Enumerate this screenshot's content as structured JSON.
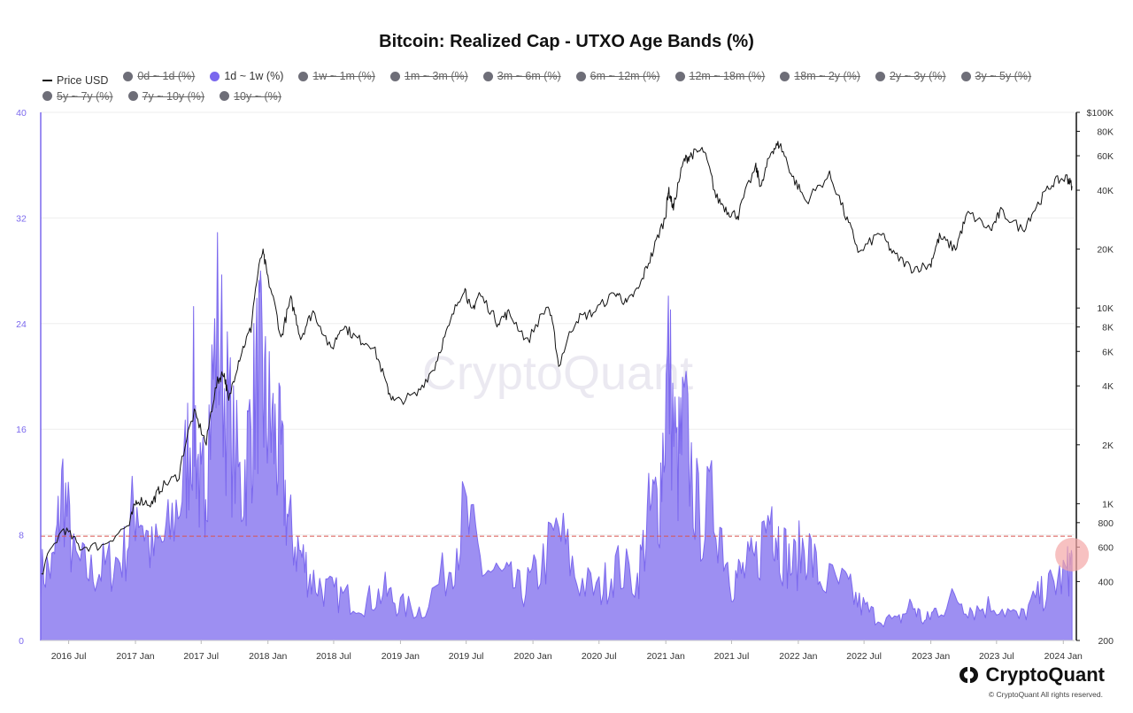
{
  "header": {
    "title": "Bitcoin: Realized Cap - UTXO Age Bands (%)"
  },
  "legend": [
    {
      "label": "Price USD",
      "type": "line",
      "state": "shown"
    },
    {
      "label": "0d ~ 1d (%)",
      "type": "dot",
      "state": "hidden"
    },
    {
      "label": "1d ~ 1w (%)",
      "type": "dot",
      "state": "active"
    },
    {
      "label": "1w ~ 1m (%)",
      "type": "dot",
      "state": "hidden"
    },
    {
      "label": "1m ~ 3m (%)",
      "type": "dot",
      "state": "hidden"
    },
    {
      "label": "3m ~ 6m (%)",
      "type": "dot",
      "state": "hidden"
    },
    {
      "label": "6m ~ 12m (%)",
      "type": "dot",
      "state": "hidden"
    },
    {
      "label": "12m ~ 18m (%)",
      "type": "dot",
      "state": "hidden"
    },
    {
      "label": "18m ~ 2y (%)",
      "type": "dot",
      "state": "hidden"
    },
    {
      "label": "2y ~ 3y (%)",
      "type": "dot",
      "state": "hidden"
    },
    {
      "label": "3y ~ 5y (%)",
      "type": "dot",
      "state": "hidden"
    },
    {
      "label": "5y ~ 7y (%)",
      "type": "dot",
      "state": "hidden"
    },
    {
      "label": "7y ~ 10y (%)",
      "type": "dot",
      "state": "hidden"
    },
    {
      "label": "10y ~ (%)",
      "type": "dot",
      "state": "hidden"
    }
  ],
  "watermark": "CryptoQuant",
  "brand": {
    "name": "CryptoQuant",
    "copyright": "© CryptoQuant All rights reserved."
  },
  "colors": {
    "band": "#7b68ee",
    "band_fill": "#9d8ff2",
    "price": "#111111",
    "threshold": "#d9534f",
    "highlight": "#f4a6a6"
  },
  "chart_data": {
    "type": "area",
    "title": "Bitcoin: Realized Cap - UTXO Age Bands (%)",
    "x_range": [
      "2016-04-15",
      "2024-02-01"
    ],
    "x_ticks": [
      "2016 Jul",
      "2017 Jan",
      "2017 Jul",
      "2018 Jan",
      "2018 Jul",
      "2019 Jan",
      "2019 Jul",
      "2020 Jan",
      "2020 Jul",
      "2021 Jan",
      "2021 Jul",
      "2022 Jan",
      "2022 Jul",
      "2023 Jan",
      "2023 Jul",
      "2024 Jan"
    ],
    "y_left": {
      "range": [
        0,
        40
      ],
      "ticks": [
        "0",
        "8",
        "16",
        "24",
        "32",
        "40"
      ]
    },
    "y_right": {
      "scale": "log",
      "range": [
        200,
        100000
      ],
      "ticks": [
        [
          "200",
          200
        ],
        [
          "400",
          400
        ],
        [
          "600",
          600
        ],
        [
          "800",
          800
        ],
        [
          "1K",
          1000
        ],
        [
          "2K",
          2000
        ],
        [
          "4K",
          4000
        ],
        [
          "6K",
          6000
        ],
        [
          "8K",
          8000
        ],
        [
          "10K",
          10000
        ],
        [
          "20K",
          20000
        ],
        [
          "40K",
          40000
        ],
        [
          "60K",
          60000
        ],
        [
          "80K",
          80000
        ],
        [
          "$100K",
          100000
        ]
      ]
    },
    "threshold_line": 7.9,
    "series": [
      {
        "name": "1d ~ 1w (%)",
        "axis": "left",
        "points": [
          [
            "2016-04-15",
            5.5
          ],
          [
            "2016-05-20",
            6.0
          ],
          [
            "2016-06-15",
            12.8
          ],
          [
            "2016-07-15",
            6.5
          ],
          [
            "2016-09-01",
            5.5
          ],
          [
            "2016-10-15",
            6.0
          ],
          [
            "2016-12-01",
            7.0
          ],
          [
            "2017-01-05",
            11.8
          ],
          [
            "2017-02-15",
            7.0
          ],
          [
            "2017-04-01",
            8.5
          ],
          [
            "2017-05-15",
            13.0
          ],
          [
            "2017-06-10",
            19.5
          ],
          [
            "2017-07-01",
            11.0
          ],
          [
            "2017-07-15",
            15.0
          ],
          [
            "2017-08-15",
            25.5
          ],
          [
            "2017-09-15",
            18.0
          ],
          [
            "2017-10-20",
            12.0
          ],
          [
            "2017-11-15",
            17.5
          ],
          [
            "2017-12-07",
            22.5
          ],
          [
            "2017-12-25",
            19.0
          ],
          [
            "2018-01-15",
            17.0
          ],
          [
            "2018-02-06",
            14.5
          ],
          [
            "2018-03-01",
            9.0
          ],
          [
            "2018-04-01",
            7.0
          ],
          [
            "2018-05-01",
            5.0
          ],
          [
            "2018-06-15",
            4.0
          ],
          [
            "2018-08-01",
            3.5
          ],
          [
            "2018-10-01",
            3.2
          ],
          [
            "2018-11-20",
            4.0
          ],
          [
            "2019-01-01",
            2.8
          ],
          [
            "2019-03-01",
            2.5
          ],
          [
            "2019-05-15",
            6.0
          ],
          [
            "2019-06-26",
            10.2
          ],
          [
            "2019-08-15",
            6.0
          ],
          [
            "2019-10-15",
            5.0
          ],
          [
            "2019-12-01",
            4.0
          ],
          [
            "2020-01-15",
            5.5
          ],
          [
            "2020-03-12",
            9.0
          ],
          [
            "2020-05-01",
            5.0
          ],
          [
            "2020-07-01",
            4.0
          ],
          [
            "2020-08-15",
            6.0
          ],
          [
            "2020-10-15",
            5.0
          ],
          [
            "2020-11-15",
            10.0
          ],
          [
            "2020-12-15",
            12.0
          ],
          [
            "2021-01-08",
            22.5
          ],
          [
            "2021-02-01",
            14.0
          ],
          [
            "2021-02-21",
            17.5
          ],
          [
            "2021-04-01",
            10.0
          ],
          [
            "2021-05-19",
            11.0
          ],
          [
            "2021-07-01",
            5.0
          ],
          [
            "2021-08-01",
            5.5
          ],
          [
            "2021-09-07",
            6.5
          ],
          [
            "2021-10-20",
            11.0
          ],
          [
            "2021-11-10",
            8.0
          ],
          [
            "2021-12-15",
            6.0
          ],
          [
            "2022-01-22",
            8.0
          ],
          [
            "2022-03-01",
            5.0
          ],
          [
            "2022-05-10",
            4.5
          ],
          [
            "2022-06-18",
            3.0
          ],
          [
            "2022-08-01",
            2.0
          ],
          [
            "2022-10-01",
            1.5
          ],
          [
            "2022-11-09",
            3.0
          ],
          [
            "2022-12-15",
            1.5
          ],
          [
            "2023-01-15",
            2.5
          ],
          [
            "2023-03-15",
            3.5
          ],
          [
            "2023-05-01",
            2.5
          ],
          [
            "2023-07-01",
            3.0
          ],
          [
            "2023-09-01",
            1.8
          ],
          [
            "2023-10-23",
            3.5
          ],
          [
            "2023-12-01",
            4.5
          ],
          [
            "2024-01-11",
            5.5
          ],
          [
            "2024-01-25",
            6.5
          ]
        ]
      },
      {
        "name": "Price USD",
        "axis": "right",
        "points": [
          [
            "2016-04-15",
            430
          ],
          [
            "2016-06-17",
            750
          ],
          [
            "2016-08-01",
            600
          ],
          [
            "2016-10-01",
            610
          ],
          [
            "2016-12-15",
            780
          ],
          [
            "2017-01-05",
            1050
          ],
          [
            "2017-02-15",
            1000
          ],
          [
            "2017-03-10",
            1200
          ],
          [
            "2017-05-01",
            1400
          ],
          [
            "2017-06-12",
            2900
          ],
          [
            "2017-07-15",
            2000
          ],
          [
            "2017-08-15",
            4200
          ],
          [
            "2017-09-01",
            4700
          ],
          [
            "2017-09-15",
            3300
          ],
          [
            "2017-10-15",
            5600
          ],
          [
            "2017-11-15",
            7800
          ],
          [
            "2017-12-17",
            19500
          ],
          [
            "2018-01-01",
            14000
          ],
          [
            "2018-02-06",
            6900
          ],
          [
            "2018-03-05",
            11000
          ],
          [
            "2018-04-01",
            7000
          ],
          [
            "2018-05-05",
            9600
          ],
          [
            "2018-06-24",
            6000
          ],
          [
            "2018-07-25",
            8200
          ],
          [
            "2018-09-01",
            7000
          ],
          [
            "2018-10-15",
            6500
          ],
          [
            "2018-11-25",
            3900
          ],
          [
            "2018-12-15",
            3300
          ],
          [
            "2019-02-15",
            3600
          ],
          [
            "2019-04-05",
            5000
          ],
          [
            "2019-05-15",
            8000
          ],
          [
            "2019-06-26",
            12800
          ],
          [
            "2019-07-15",
            9500
          ],
          [
            "2019-08-06",
            11800
          ],
          [
            "2019-09-24",
            8500
          ],
          [
            "2019-10-26",
            9400
          ],
          [
            "2019-12-17",
            6700
          ],
          [
            "2020-02-12",
            10300
          ],
          [
            "2020-03-12",
            5000
          ],
          [
            "2020-04-30",
            8800
          ],
          [
            "2020-06-15",
            9500
          ],
          [
            "2020-08-17",
            12000
          ],
          [
            "2020-09-15",
            10500
          ],
          [
            "2020-10-21",
            12800
          ],
          [
            "2020-11-25",
            19000
          ],
          [
            "2020-12-31",
            29000
          ],
          [
            "2021-01-08",
            40000
          ],
          [
            "2021-01-22",
            32000
          ],
          [
            "2021-02-21",
            57000
          ],
          [
            "2021-03-13",
            61000
          ],
          [
            "2021-04-14",
            64000
          ],
          [
            "2021-05-19",
            37000
          ],
          [
            "2021-06-22",
            31000
          ],
          [
            "2021-07-20",
            29800
          ],
          [
            "2021-09-06",
            52000
          ],
          [
            "2021-09-21",
            41000
          ],
          [
            "2021-10-20",
            64000
          ],
          [
            "2021-11-10",
            69000
          ],
          [
            "2021-12-15",
            47000
          ],
          [
            "2022-01-22",
            35000
          ],
          [
            "2022-03-28",
            47500
          ],
          [
            "2022-05-12",
            29000
          ],
          [
            "2022-06-18",
            18900
          ],
          [
            "2022-08-14",
            24300
          ],
          [
            "2022-09-20",
            18800
          ],
          [
            "2022-11-09",
            16000
          ],
          [
            "2022-12-30",
            16500
          ],
          [
            "2023-01-25",
            23000
          ],
          [
            "2023-03-10",
            20000
          ],
          [
            "2023-04-14",
            30500
          ],
          [
            "2023-06-15",
            25000
          ],
          [
            "2023-07-13",
            31000
          ],
          [
            "2023-09-11",
            25000
          ],
          [
            "2023-10-23",
            34000
          ],
          [
            "2023-12-05",
            44000
          ],
          [
            "2024-01-11",
            46500
          ],
          [
            "2024-01-25",
            42000
          ]
        ]
      }
    ],
    "highlight_point": {
      "series": "1d ~ 1w (%)",
      "date": "2024-01-25",
      "value": 6.5
    }
  }
}
